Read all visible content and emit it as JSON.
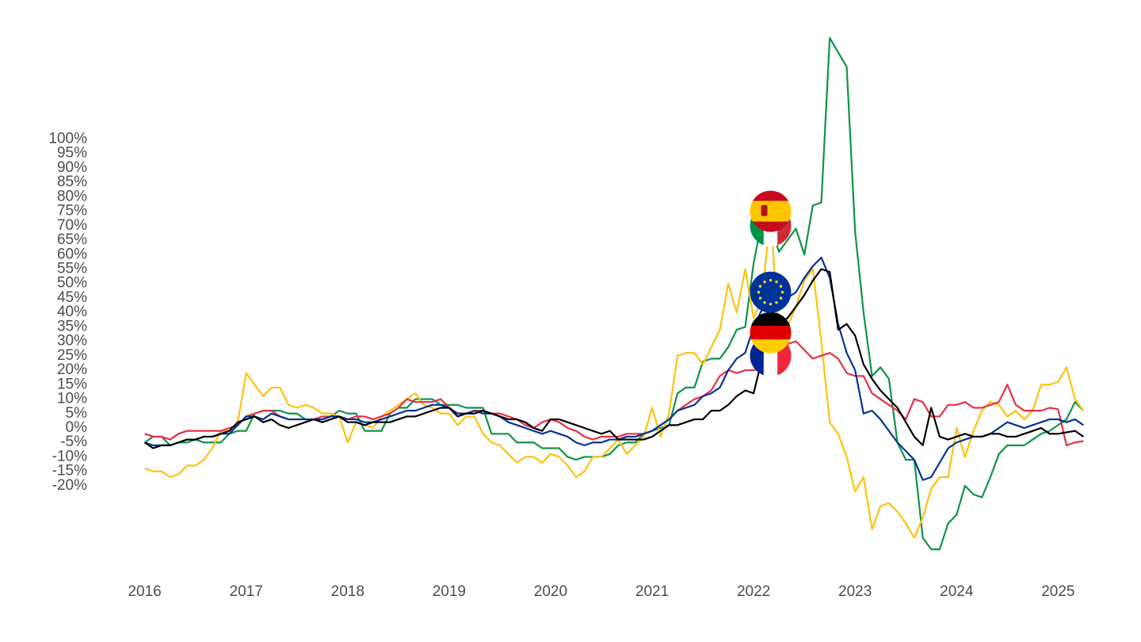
{
  "chart_data": {
    "type": "line",
    "xlim": [
      2015.55,
      2025.7
    ],
    "xticks": [
      2016,
      2017,
      2018,
      2019,
      2020,
      2021,
      2022,
      2023,
      2024,
      2025
    ],
    "ylim": [
      -48,
      144
    ],
    "yticks": [
      {
        "value": -20,
        "label": "-20%"
      },
      {
        "value": -15,
        "label": "-15%"
      },
      {
        "value": -10,
        "label": "-10%"
      },
      {
        "value": -5,
        "label": "-5%"
      },
      {
        "value": 0,
        "label": "0%"
      },
      {
        "value": 5,
        "label": "5%"
      },
      {
        "value": 10,
        "label": "10%"
      },
      {
        "value": 15,
        "label": "15%"
      },
      {
        "value": 20,
        "label": "20%"
      },
      {
        "value": 25,
        "label": "25%"
      },
      {
        "value": 30,
        "label": "30%"
      },
      {
        "value": 35,
        "label": "35%"
      },
      {
        "value": 40,
        "label": "40%"
      },
      {
        "value": 45,
        "label": "45%"
      },
      {
        "value": 50,
        "label": "50%"
      },
      {
        "value": 55,
        "label": "55%"
      },
      {
        "value": 60,
        "label": "60%"
      },
      {
        "value": 65,
        "label": "65%"
      },
      {
        "value": 70,
        "label": "70%"
      },
      {
        "value": 75,
        "label": "75%"
      },
      {
        "value": 80,
        "label": "80%"
      },
      {
        "value": 85,
        "label": "85%"
      },
      {
        "value": 90,
        "label": "90%"
      },
      {
        "value": 95,
        "label": "95%"
      },
      {
        "value": 100,
        "label": "100%"
      }
    ],
    "grid": true,
    "x": [
      2016,
      2016.083,
      2016.167,
      2016.25,
      2016.333,
      2016.417,
      2016.5,
      2016.583,
      2016.667,
      2016.75,
      2016.833,
      2016.917,
      2017,
      2017.083,
      2017.167,
      2017.25,
      2017.333,
      2017.417,
      2017.5,
      2017.583,
      2017.667,
      2017.75,
      2017.833,
      2017.917,
      2018,
      2018.083,
      2018.167,
      2018.25,
      2018.333,
      2018.417,
      2018.5,
      2018.583,
      2018.667,
      2018.75,
      2018.833,
      2018.917,
      2019,
      2019.083,
      2019.167,
      2019.25,
      2019.333,
      2019.417,
      2019.5,
      2019.583,
      2019.667,
      2019.75,
      2019.833,
      2019.917,
      2020,
      2020.083,
      2020.167,
      2020.25,
      2020.333,
      2020.417,
      2020.5,
      2020.583,
      2020.667,
      2020.75,
      2020.833,
      2020.917,
      2021,
      2021.083,
      2021.167,
      2021.25,
      2021.333,
      2021.417,
      2021.5,
      2021.583,
      2021.667,
      2021.75,
      2021.833,
      2021.917,
      2022,
      2022.083,
      2022.167,
      2022.25,
      2022.333,
      2022.417,
      2022.5,
      2022.583,
      2022.667,
      2022.75,
      2022.833,
      2022.917,
      2023,
      2023.083,
      2023.167,
      2023.25,
      2023.333,
      2023.417,
      2023.5,
      2023.583,
      2023.667,
      2023.75,
      2023.833,
      2023.917,
      2024,
      2024.083,
      2024.167,
      2024.25,
      2024.333,
      2024.417,
      2024.5,
      2024.583,
      2024.667,
      2024.75,
      2024.833,
      2024.917,
      2025,
      2025.083,
      2025.167,
      2025.25
    ],
    "series": [
      {
        "color": "#0f9448",
        "values": [
          -5,
          -3,
          -3,
          -6,
          -5,
          -5,
          -4,
          -5,
          -5,
          -5,
          -2,
          -1,
          -1,
          5,
          6,
          6,
          6,
          5,
          5,
          3,
          3,
          3,
          4,
          6,
          5,
          5,
          -1,
          -1,
          -1,
          5,
          7,
          7,
          10,
          10,
          10,
          8,
          8,
          8,
          7,
          7,
          7,
          -2,
          -2,
          -2,
          -5,
          -5,
          -5,
          -7,
          -7,
          -7,
          -10,
          -11,
          -10,
          -10,
          -10,
          -9,
          -6,
          -5,
          -5,
          -2,
          -1,
          0,
          1,
          12,
          14,
          14,
          23,
          24,
          24,
          28,
          34,
          35,
          57,
          72,
          70,
          61,
          65,
          69,
          60,
          77,
          78,
          135,
          130,
          125,
          68,
          40,
          18,
          21,
          17,
          -5,
          -11,
          -11,
          -38,
          -42,
          -42,
          -33,
          -30,
          -20,
          -23,
          -24,
          -17,
          -9,
          -6,
          -6,
          -6,
          -4,
          -2,
          -1,
          1,
          3,
          9,
          6
        ]
      },
      {
        "color": "#ffc20e",
        "values": [
          -14,
          -15,
          -15,
          -17,
          -16,
          -13,
          -13,
          -11,
          -7,
          -1,
          -1,
          2,
          19,
          15,
          11,
          14,
          14,
          8,
          7,
          8,
          7,
          5,
          5,
          4,
          -5,
          2,
          1,
          0,
          4,
          6,
          8,
          10,
          12,
          8,
          7,
          5,
          5,
          1,
          4,
          4,
          -2,
          -5,
          -6,
          -9,
          -12,
          -10,
          -10,
          -12,
          -9,
          -10,
          -13,
          -17,
          -15,
          -10,
          -10,
          -7,
          -4,
          -9,
          -6,
          -3,
          7,
          -3,
          5,
          25,
          26,
          26,
          22,
          28,
          34,
          50,
          40,
          55,
          38,
          45,
          75,
          30,
          35,
          42,
          51,
          55,
          30,
          2,
          -2,
          -10,
          -22,
          -17,
          -35,
          -27,
          -26,
          -29,
          -33,
          -38,
          -31,
          -21,
          -17,
          -17,
          0,
          -10,
          -1,
          6,
          9,
          8,
          4,
          6,
          3,
          6,
          15,
          15,
          16,
          21,
          10,
          6
        ]
      },
      {
        "color": "#e63046",
        "values": [
          -2,
          -3,
          -3,
          -4,
          -2,
          -1,
          -1,
          -1,
          -1,
          -1,
          0,
          1,
          4,
          5,
          6,
          6,
          4,
          3,
          3,
          3,
          3,
          4,
          4,
          4,
          3,
          4,
          4,
          3,
          4,
          5,
          7,
          10,
          9,
          9,
          9,
          10,
          7,
          5,
          5,
          6,
          6,
          5,
          5,
          4,
          3,
          1,
          0,
          2,
          3,
          2,
          0,
          -1,
          -3,
          -4,
          -3,
          -3,
          -3,
          -2,
          -2,
          -2,
          -1,
          1,
          3,
          6,
          8,
          10,
          11,
          13,
          18,
          20,
          19,
          20,
          20,
          21,
          25,
          27,
          29,
          30,
          27,
          24,
          25,
          26,
          24,
          19,
          18,
          18,
          12,
          10,
          8,
          6,
          3,
          10,
          9,
          4,
          4,
          8,
          8,
          9,
          7,
          7,
          8,
          9,
          15,
          8,
          6,
          6,
          6,
          7,
          6.5,
          -6,
          -5,
          -4.5
        ]
      },
      {
        "color": "#003399",
        "values": [
          -5,
          -6,
          -6,
          -6,
          -5,
          -4,
          -4,
          -3,
          -3,
          -2,
          -2,
          1,
          4,
          4,
          3,
          5,
          4,
          3,
          3,
          3,
          3,
          3,
          4,
          4,
          3,
          3,
          2,
          2,
          3,
          4,
          5,
          6,
          6,
          7,
          8,
          8,
          7,
          5,
          5,
          6,
          5,
          5,
          4,
          2,
          1,
          0,
          -1,
          -2,
          -1,
          -2,
          -3,
          -5,
          -6,
          -5,
          -5,
          -4,
          -4,
          -3,
          -3,
          -2,
          -1,
          1,
          3,
          6,
          7,
          8,
          11,
          12,
          14,
          20,
          24,
          26,
          35,
          41,
          47,
          44,
          45,
          47,
          52,
          56,
          59,
          52,
          36,
          26,
          20,
          5,
          6,
          3,
          -1,
          -5,
          -8,
          -11,
          -18,
          -17,
          -12,
          -7,
          -5,
          -4,
          -3,
          -3,
          -2,
          0,
          2,
          1,
          0,
          1,
          2,
          3,
          3,
          2,
          3,
          1
        ]
      },
      {
        "color": "#000000",
        "values": [
          -5,
          -7,
          -6,
          -6,
          -5,
          -4,
          -4,
          -3,
          -3,
          -2,
          -1,
          2,
          3,
          4,
          2,
          3,
          1,
          0,
          1,
          2,
          3,
          2,
          3,
          4,
          2,
          2,
          1,
          2,
          2,
          2,
          3,
          4,
          4,
          5,
          6,
          7,
          7,
          4,
          5,
          5,
          6,
          5,
          4,
          3,
          3,
          2,
          0,
          -1,
          3,
          3,
          2,
          1,
          0,
          -1,
          -2,
          -1,
          -4,
          -4,
          -4,
          -4,
          -3,
          -1,
          1,
          1,
          2,
          3,
          3,
          6,
          6,
          8,
          11,
          13,
          12,
          24,
          33,
          36,
          38,
          42,
          46,
          51,
          55,
          54,
          34,
          36,
          32,
          22,
          17,
          13,
          10,
          7,
          2,
          -3,
          -6,
          7,
          -3,
          -4,
          -3,
          -2,
          -3,
          -3,
          -2,
          -2,
          -3,
          -3,
          -2,
          -1,
          0,
          -2,
          -2,
          -1.5,
          -1,
          -3
        ]
      }
    ]
  }
}
